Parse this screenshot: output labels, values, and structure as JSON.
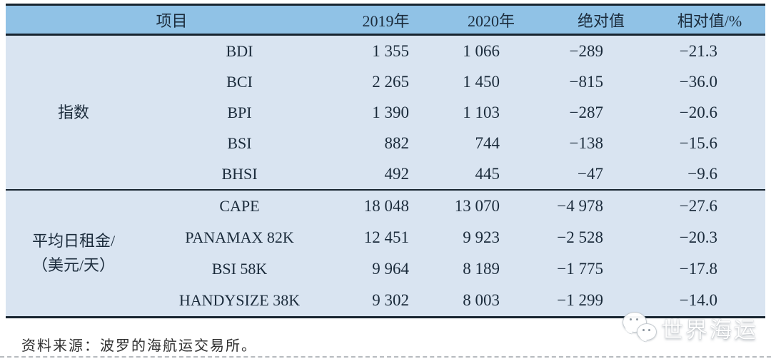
{
  "table": {
    "header": {
      "item": "项目",
      "y2019": "2019年",
      "y2020": "2020年",
      "abs": "绝对值",
      "rel": "相对值/%"
    },
    "sections": [
      {
        "group_line1": "指数",
        "group_line2": "",
        "rows": [
          {
            "item": "BDI",
            "y2019": "1 355",
            "y2020": "1 066",
            "abs": "−289",
            "rel": "−21.3"
          },
          {
            "item": "BCI",
            "y2019": "2 265",
            "y2020": "1 450",
            "abs": "−815",
            "rel": "−36.0"
          },
          {
            "item": "BPI",
            "y2019": "1 390",
            "y2020": "1 103",
            "abs": "−287",
            "rel": "−20.6"
          },
          {
            "item": "BSI",
            "y2019": "882",
            "y2020": "744",
            "abs": "−138",
            "rel": "−15.6"
          },
          {
            "item": "BHSI",
            "y2019": "492",
            "y2020": "445",
            "abs": "−47",
            "rel": "−9.6"
          }
        ]
      },
      {
        "group_line1": "平均日租金/",
        "group_line2": "（美元/天）",
        "rows": [
          {
            "item": "CAPE",
            "y2019": "18 048",
            "y2020": "13 070",
            "abs": "−4 978",
            "rel": "−27.6"
          },
          {
            "item": "PANAMAX 82K",
            "y2019": "12 451",
            "y2020": "9 923",
            "abs": "−2 528",
            "rel": "−20.3"
          },
          {
            "item": "BSI 58K",
            "y2019": "9 964",
            "y2020": "8 189",
            "abs": "−1 775",
            "rel": "−17.8"
          },
          {
            "item": "HANDYSIZE 38K",
            "y2019": "9 302",
            "y2020": "8 003",
            "abs": "−1 299",
            "rel": "−14.0"
          }
        ]
      }
    ]
  },
  "footer": {
    "source_note": "资料来源：波罗的海航运交易所。"
  },
  "watermark": {
    "label": "世界海运",
    "icon": "wechat-icon"
  },
  "colors": {
    "header_bg": "#90c2e6",
    "body_bg": "#d9e4f1",
    "border": "#17242f",
    "text": "#1b2b3b"
  }
}
